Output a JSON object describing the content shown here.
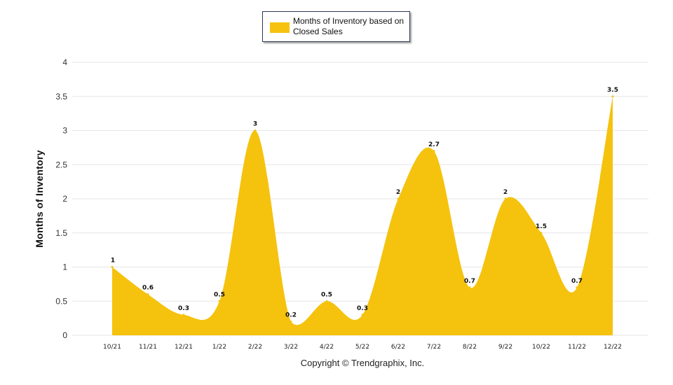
{
  "chart_data": {
    "type": "area",
    "categories": [
      "10/21",
      "11/21",
      "12/21",
      "1/22",
      "2/22",
      "3/22",
      "4/22",
      "5/22",
      "6/22",
      "7/22",
      "8/22",
      "9/22",
      "10/22",
      "11/22",
      "12/22"
    ],
    "series": [
      {
        "name": "Months of Inventory based on Closed Sales",
        "values": [
          1,
          0.6,
          0.3,
          0.5,
          3,
          0.2,
          0.5,
          0.3,
          2,
          2.7,
          0.7,
          2,
          1.5,
          0.7,
          3.5
        ],
        "color": "#f5c20d"
      }
    ],
    "data_labels": [
      "1",
      "0.6",
      "0.3",
      "0.5",
      "3",
      "0.2",
      "0.5",
      "0.3",
      "2",
      "2.7",
      "0.7",
      "2",
      "1.5",
      "0.7",
      "3.5"
    ],
    "ylabel": "Months of Inventory",
    "xlabel": "",
    "ylim": [
      0,
      4
    ],
    "yticks": [
      "0",
      "0.5",
      "1",
      "1.5",
      "2",
      "2.5",
      "3",
      "3.5",
      "4"
    ],
    "grid": true,
    "legend_position": "top-center"
  },
  "legend": {
    "label": "Months of Inventory based on Closed Sales",
    "color": "#f5c20d"
  },
  "footer": {
    "copyright": "Copyright © Trendgraphix, Inc."
  },
  "colors": {
    "area": "#f5c20d",
    "grid": "#e6e6e6",
    "axis": "#cccccc"
  }
}
